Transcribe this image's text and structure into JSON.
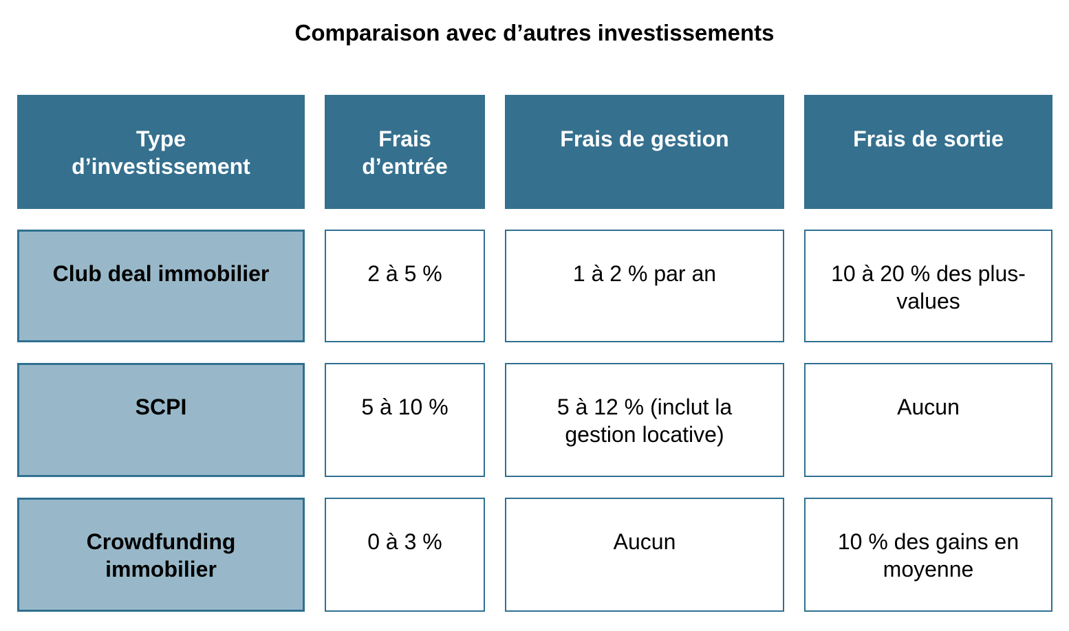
{
  "title": "Comparaison avec d’autres investissements",
  "colors": {
    "header_background": "#35708E",
    "header_text": "#FFFFFF",
    "row_label_background": "#98B8C9",
    "cell_border": "#2F7090",
    "body_text": "#000000"
  },
  "table": {
    "columns": [
      {
        "label": "Type\nd’investissement"
      },
      {
        "label": "Frais\nd’entrée"
      },
      {
        "label": "Frais de gestion"
      },
      {
        "label": "Frais de sortie"
      }
    ],
    "rows": [
      {
        "type": "Club deal immobilier",
        "frais_entree": "2 à 5 %",
        "frais_gestion": "1 à 2 % par an",
        "frais_sortie": "10 à 20 % des plus-values"
      },
      {
        "type": "SCPI",
        "frais_entree": "5 à 10 %",
        "frais_gestion": "5 à 12 % (inclut la gestion locative)",
        "frais_sortie": "Aucun"
      },
      {
        "type": "Crowdfunding immobilier",
        "frais_entree": "0 à 3 %",
        "frais_gestion": "Aucun",
        "frais_sortie": "10 % des gains en moyenne"
      }
    ]
  }
}
